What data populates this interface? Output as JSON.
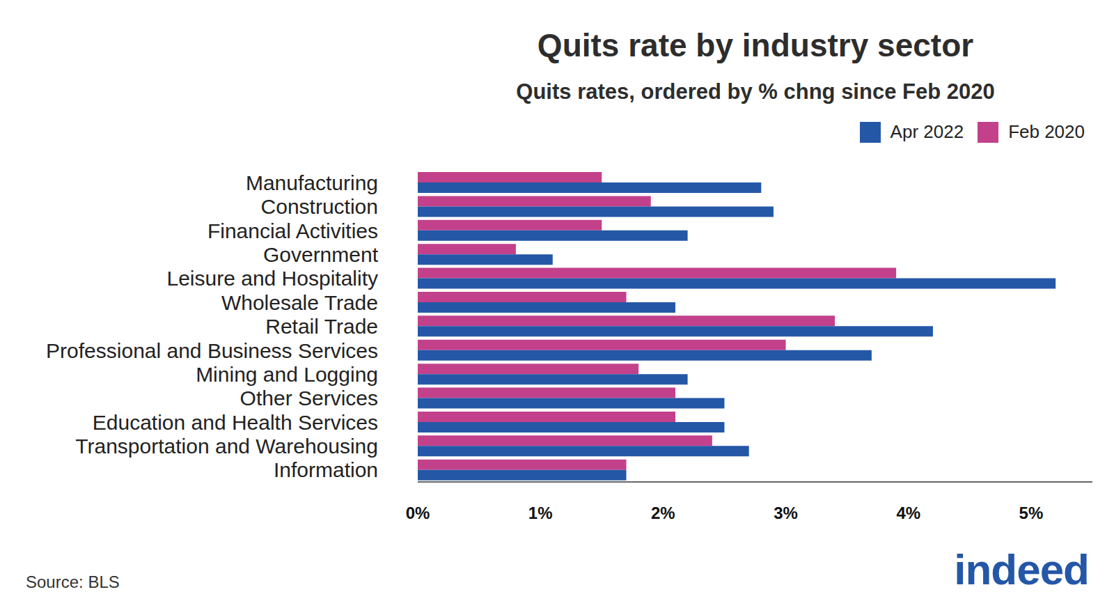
{
  "chart_data": {
    "type": "bar",
    "orientation": "horizontal",
    "title": "Quits rate by industry sector",
    "subtitle": "Quits rates, ordered by % chng since Feb 2020",
    "source": "Source: BLS",
    "brand": "indeed",
    "legend": "top-right",
    "grid": false,
    "categories": [
      "Manufacturing",
      "Construction",
      "Financial Activities",
      "Government",
      "Leisure and Hospitality",
      "Wholesale Trade",
      "Retail Trade",
      "Professional and Business Services",
      "Mining and Logging",
      "Other Services",
      "Education and Health Services",
      "Transportation and Warehousing",
      "Information"
    ],
    "series": [
      {
        "name": "Apr 2022",
        "color": "#2557a7",
        "values": [
          2.8,
          2.9,
          2.2,
          1.1,
          5.2,
          2.1,
          4.2,
          3.7,
          2.2,
          2.5,
          2.5,
          2.7,
          1.7
        ]
      },
      {
        "name": "Feb 2020",
        "color": "#c2418a",
        "values": [
          1.5,
          1.9,
          1.5,
          0.8,
          3.9,
          1.7,
          3.4,
          3.0,
          1.8,
          2.1,
          2.1,
          2.4,
          1.7
        ]
      }
    ],
    "xlim": [
      0,
      5.5
    ],
    "xticks": [
      {
        "value": 0,
        "label": "0%"
      },
      {
        "value": 1,
        "label": "1%"
      },
      {
        "value": 2,
        "label": "2%"
      },
      {
        "value": 3,
        "label": "3%"
      },
      {
        "value": 4,
        "label": "4%"
      },
      {
        "value": 5,
        "label": "5%"
      }
    ]
  }
}
